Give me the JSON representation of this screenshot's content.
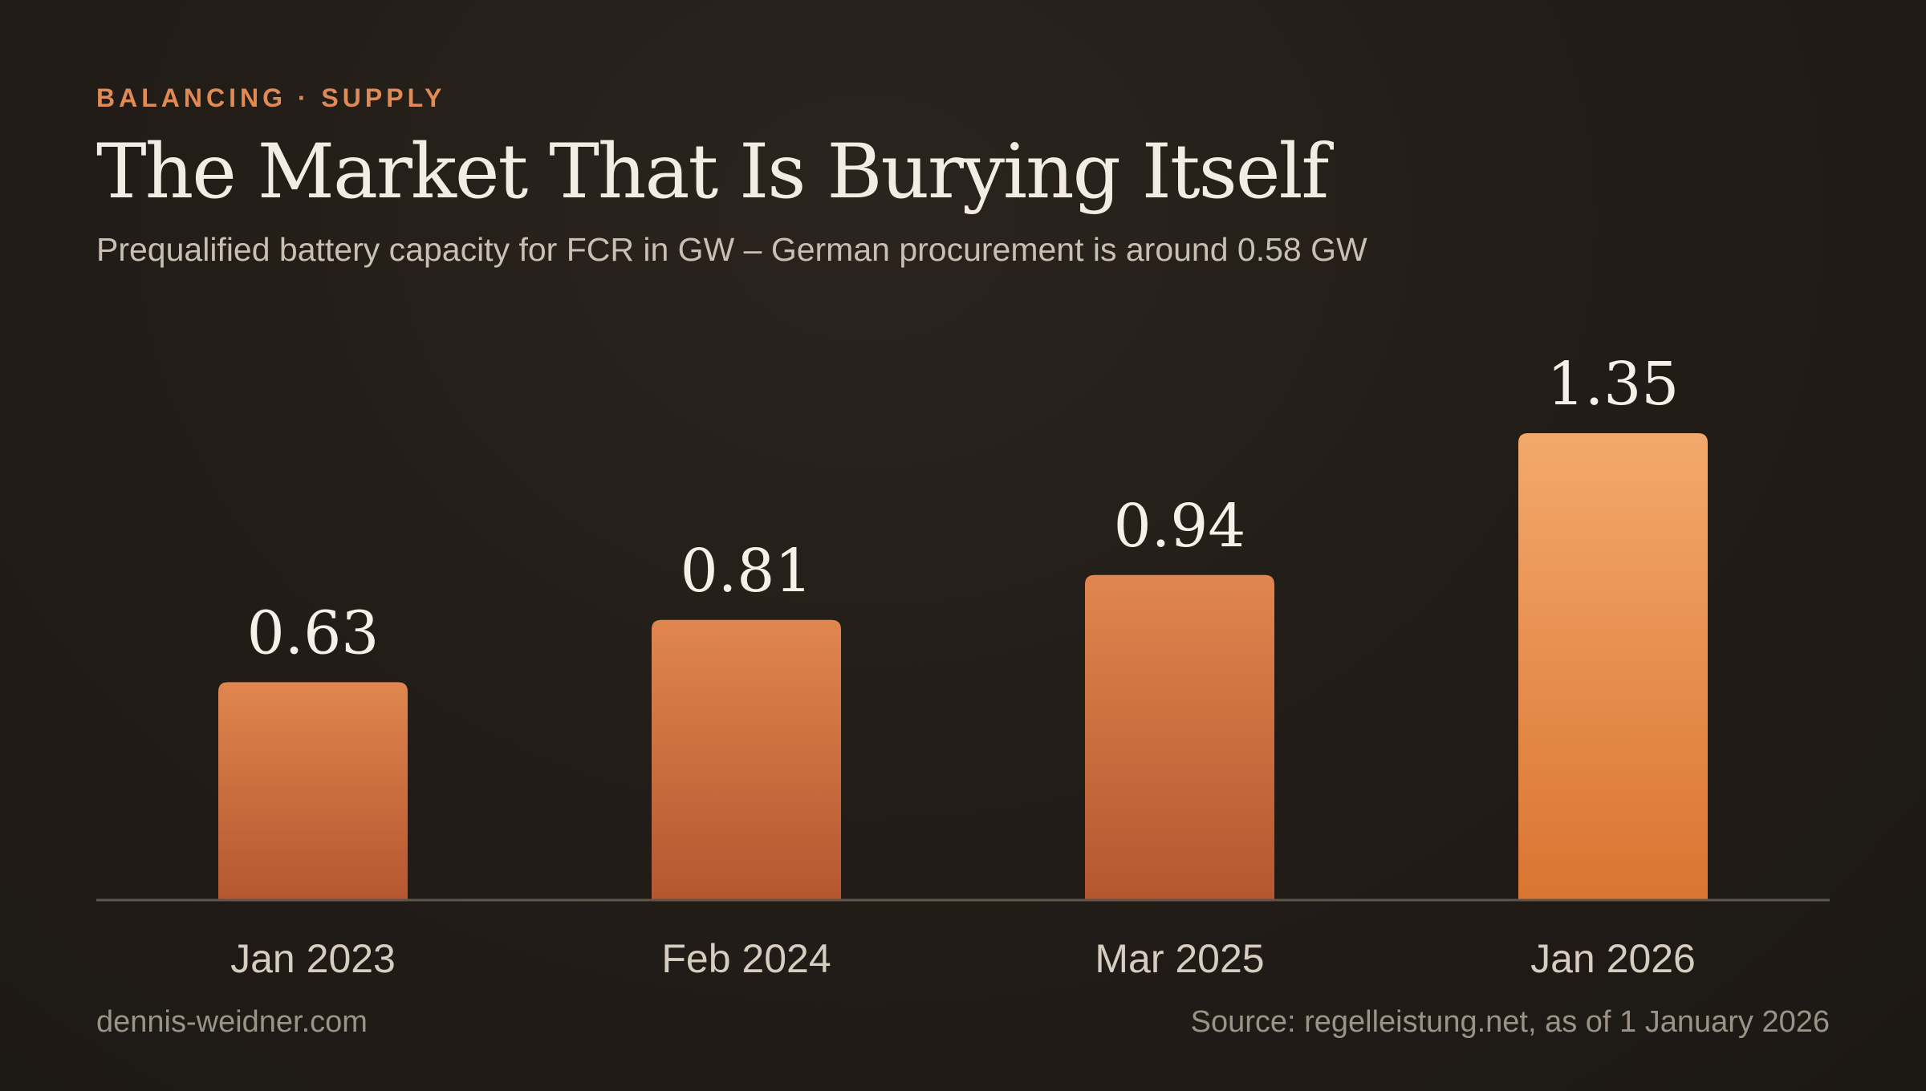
{
  "header": {
    "eyebrow": "BALANCING · SUPPLY",
    "title": "The Market That Is Burying Itself",
    "subtitle": "Prequalified battery capacity for FCR in GW – German procurement is around 0.58 GW"
  },
  "footer": {
    "site": "dennis-weidner.com",
    "source": "Source: regelleistung.net, as of 1 January 2026"
  },
  "colors": {
    "accent": "#e08a55",
    "bar_top": "#e0864e",
    "bar_bottom": "#b55630",
    "highlight_top": "#f3a96b",
    "highlight_bottom": "#da7432",
    "axis": "#5e564c",
    "value_label": "#f6f0e8",
    "category_label": "#d6ccbf"
  },
  "chart_data": {
    "type": "bar",
    "title": "The Market That Is Burying Itself",
    "subtitle": "Prequalified battery capacity for FCR in GW – German procurement is around 0.58 GW",
    "categories": [
      "Jan 2023",
      "Feb 2024",
      "Mar 2025",
      "Jan 2026"
    ],
    "values": [
      0.63,
      0.81,
      0.94,
      1.35
    ],
    "value_labels": [
      "0.63",
      "0.81",
      "0.94",
      "1.35"
    ],
    "highlighted_index": 3,
    "xlabel": "",
    "ylabel": "",
    "ylim": [
      0,
      1.35
    ],
    "grid": false,
    "legend": "none"
  }
}
